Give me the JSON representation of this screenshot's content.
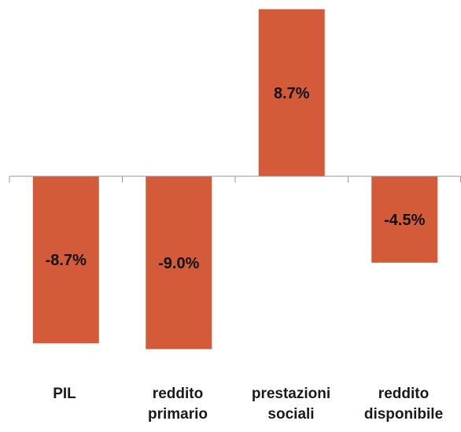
{
  "chart_data": {
    "type": "bar",
    "categories": [
      "PIL",
      "reddito\nprimario",
      "prestazioni\nsociali",
      "reddito\ndisponibile"
    ],
    "values": [
      -8.7,
      -9.0,
      8.7,
      -4.5
    ],
    "data_labels": [
      "-8.7%",
      "-9.0%",
      "8.7%",
      "-4.5%"
    ],
    "ylim": [
      -9.0,
      8.7
    ],
    "grid": false,
    "legend": "none",
    "bar_color": "#d35b3a"
  }
}
